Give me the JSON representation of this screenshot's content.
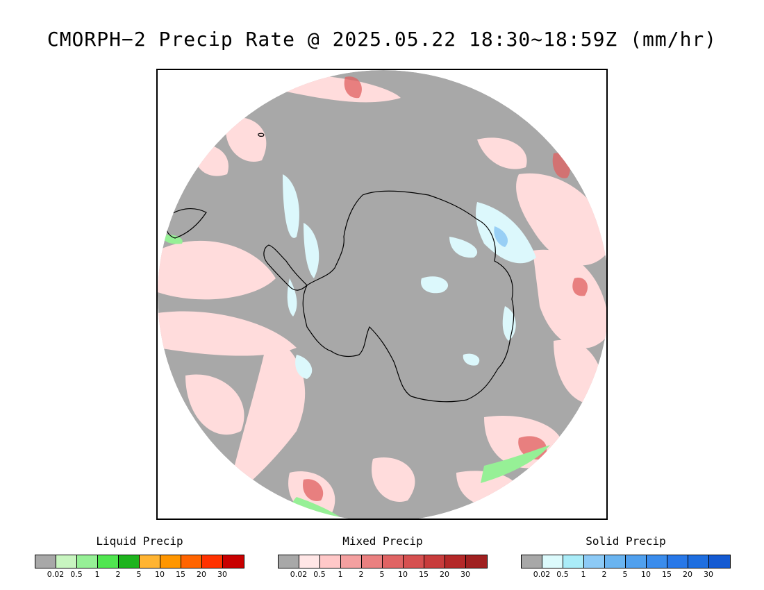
{
  "title": "CMORPH−2 Precip Rate @ 2025.05.22 18:30~18:59Z (mm/hr)",
  "map": {
    "colors": {
      "no_precip": "#a8a8a8",
      "mixed_light": "#ffdcdc",
      "mixed_mid": "#f4a0a0",
      "mixed_heavy": "#e06060",
      "solid_light": "#dcf8fc",
      "solid_mid": "#a8ecf6",
      "solid_heavy": "#6ab4f0",
      "liquid_light": "#c8f5c0",
      "liquid_mid": "#96f096",
      "coastline": "#000000"
    }
  },
  "legends": [
    {
      "title": "Liquid Precip",
      "colors": [
        "#a8a8a8",
        "#c8f5c0",
        "#96f096",
        "#50e650",
        "#1eb41e",
        "#ffb432",
        "#ff9600",
        "#ff6400",
        "#ff3200",
        "#c80000"
      ],
      "ticks": [
        "0.02",
        "0.5",
        "1",
        "2",
        "5",
        "10",
        "15",
        "20",
        "30"
      ]
    },
    {
      "title": "Mixed Precip",
      "colors": [
        "#a8a8a8",
        "#ffe6e6",
        "#ffc8c8",
        "#f4a0a0",
        "#ea8080",
        "#e06464",
        "#d65050",
        "#c83c3c",
        "#b42828",
        "#a02020"
      ],
      "ticks": [
        "0.02",
        "0.5",
        "1",
        "2",
        "5",
        "10",
        "15",
        "20",
        "30"
      ]
    },
    {
      "title": "Solid Precip",
      "colors": [
        "#a8a8a8",
        "#dcfafc",
        "#aaecf8",
        "#8ccaf6",
        "#6ab4f0",
        "#50a0ee",
        "#3a8cec",
        "#2878e8",
        "#1e6ee0",
        "#145ad2"
      ],
      "ticks": [
        "0.02",
        "0.5",
        "1",
        "2",
        "5",
        "10",
        "15",
        "20",
        "30"
      ]
    }
  ]
}
